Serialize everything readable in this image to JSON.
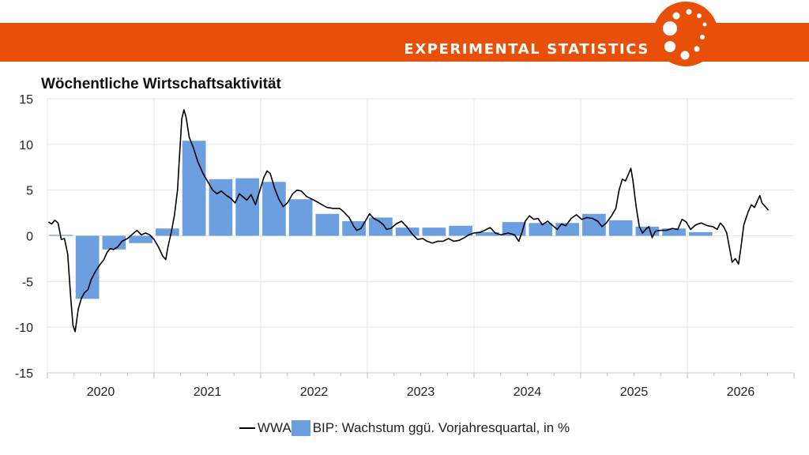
{
  "header": {
    "banner_title": "EXPERIMENTAL STATISTICS",
    "banner_color": "#e8500a",
    "logo_icon": "orange-circle-dots-logo"
  },
  "chart_data": {
    "type": "bar+line",
    "title": "Wöchentliche Wirtschaftsaktivität",
    "xlabel": "",
    "ylabel": "",
    "ylim": [
      -15,
      15
    ],
    "xlim": [
      2019.5,
      2026.5
    ],
    "yticks": [
      "15",
      "10",
      "5",
      "0",
      "-5",
      "-10",
      "-15"
    ],
    "xticks": [
      "2020",
      "2021",
      "2022",
      "2023",
      "2024",
      "2025",
      "2026"
    ],
    "grid": true,
    "legend_position": "bottom",
    "legend": [
      "WWA",
      "BIP: Wachstum ggü. Vorjahresquartal, in %"
    ],
    "bar_color": "#6c9fe0",
    "line_color": "#000000",
    "series": [
      {
        "name": "BIP: Wachstum ggü. Vorjahresquartal, in %",
        "kind": "bar",
        "x": [
          "2020Q1",
          "2020Q2",
          "2020Q3",
          "2020Q4",
          "2021Q1",
          "2021Q2",
          "2021Q3",
          "2021Q4",
          "2022Q1",
          "2022Q2",
          "2022Q3",
          "2022Q4",
          "2023Q1",
          "2023Q2",
          "2023Q3",
          "2023Q4",
          "2024Q1",
          "2024Q2",
          "2024Q3",
          "2024Q4",
          "2025Q1",
          "2025Q2",
          "2025Q3",
          "2025Q4",
          "2026Q1"
        ],
        "values": [
          0.1,
          -6.9,
          -1.5,
          -0.8,
          0.8,
          10.4,
          6.2,
          6.3,
          5.9,
          4.0,
          2.4,
          1.6,
          2.0,
          0.9,
          0.9,
          1.1,
          0.4,
          1.5,
          1.4,
          1.4,
          2.4,
          1.7,
          1.0,
          0.8,
          0.4
        ]
      },
      {
        "name": "WWA",
        "kind": "line",
        "points": [
          [
            2019.51,
            1.5
          ],
          [
            2019.54,
            1.3
          ],
          [
            2019.57,
            1.7
          ],
          [
            2019.6,
            1.4
          ],
          [
            2019.63,
            -0.4
          ],
          [
            2019.66,
            -0.3
          ],
          [
            2019.69,
            -2.0
          ],
          [
            2019.72,
            -7.0
          ],
          [
            2019.74,
            -9.8
          ],
          [
            2019.76,
            -10.5
          ],
          [
            2019.79,
            -8.0
          ],
          [
            2019.82,
            -6.8
          ],
          [
            2019.85,
            -6.2
          ],
          [
            2019.88,
            -5.9
          ],
          [
            2019.91,
            -4.8
          ],
          [
            2019.95,
            -3.9
          ],
          [
            2019.99,
            -3.2
          ],
          [
            2020.03,
            -2.6
          ],
          [
            2020.06,
            -1.8
          ],
          [
            2020.09,
            -1.4
          ],
          [
            2020.12,
            -1.5
          ],
          [
            2020.16,
            -1.2
          ],
          [
            2020.2,
            -0.6
          ],
          [
            2020.25,
            -0.3
          ],
          [
            2020.3,
            0.2
          ],
          [
            2020.34,
            0.6
          ],
          [
            2020.38,
            0.1
          ],
          [
            2020.42,
            0.3
          ],
          [
            2020.46,
            0.1
          ],
          [
            2020.5,
            -0.4
          ],
          [
            2020.54,
            -1.2
          ],
          [
            2020.58,
            -2.2
          ],
          [
            2020.61,
            -2.6
          ],
          [
            2020.63,
            -1.2
          ],
          [
            2020.66,
            0.3
          ],
          [
            2020.69,
            2.2
          ],
          [
            2020.72,
            5.0
          ],
          [
            2020.74,
            9.0
          ],
          [
            2020.76,
            12.8
          ],
          [
            2020.78,
            13.8
          ],
          [
            2020.8,
            13.0
          ],
          [
            2020.83,
            10.8
          ],
          [
            2020.87,
            9.6
          ],
          [
            2020.91,
            8.1
          ],
          [
            2020.96,
            6.8
          ],
          [
            2021.01,
            5.8
          ],
          [
            2021.05,
            5.0
          ],
          [
            2021.09,
            4.6
          ],
          [
            2021.13,
            4.9
          ],
          [
            2021.18,
            4.4
          ],
          [
            2021.22,
            4.1
          ],
          [
            2021.26,
            3.6
          ],
          [
            2021.3,
            4.6
          ],
          [
            2021.34,
            4.2
          ],
          [
            2021.37,
            3.9
          ],
          [
            2021.41,
            4.5
          ],
          [
            2021.45,
            3.4
          ],
          [
            2021.49,
            4.9
          ],
          [
            2021.53,
            6.4
          ],
          [
            2021.56,
            7.1
          ],
          [
            2021.59,
            6.8
          ],
          [
            2021.63,
            5.2
          ],
          [
            2021.67,
            4.0
          ],
          [
            2021.71,
            3.2
          ],
          [
            2021.75,
            3.6
          ],
          [
            2021.8,
            4.6
          ],
          [
            2021.84,
            5.0
          ],
          [
            2021.88,
            4.9
          ],
          [
            2021.93,
            4.3
          ],
          [
            2022.0,
            3.9
          ],
          [
            2022.06,
            3.5
          ],
          [
            2022.12,
            3.1
          ],
          [
            2022.18,
            3.0
          ],
          [
            2022.24,
            3.0
          ],
          [
            2022.28,
            2.6
          ],
          [
            2022.33,
            2.0
          ],
          [
            2022.37,
            1.1
          ],
          [
            2022.4,
            0.6
          ],
          [
            2022.44,
            0.8
          ],
          [
            2022.48,
            1.6
          ],
          [
            2022.52,
            2.4
          ],
          [
            2022.56,
            1.9
          ],
          [
            2022.61,
            1.6
          ],
          [
            2022.65,
            1.2
          ],
          [
            2022.68,
            0.7
          ],
          [
            2022.72,
            0.8
          ],
          [
            2022.77,
            1.3
          ],
          [
            2022.82,
            1.6
          ],
          [
            2022.87,
            1.0
          ],
          [
            2022.92,
            0.2
          ],
          [
            2022.97,
            -0.4
          ],
          [
            2023.02,
            -0.3
          ],
          [
            2023.06,
            -0.6
          ],
          [
            2023.11,
            -0.8
          ],
          [
            2023.16,
            -0.6
          ],
          [
            2023.21,
            -0.6
          ],
          [
            2023.26,
            -0.3
          ],
          [
            2023.31,
            -0.6
          ],
          [
            2023.36,
            -0.5
          ],
          [
            2023.41,
            -0.2
          ],
          [
            2023.45,
            0.1
          ],
          [
            2023.5,
            0.3
          ],
          [
            2023.56,
            0.4
          ],
          [
            2023.6,
            0.6
          ],
          [
            2023.65,
            0.9
          ],
          [
            2023.7,
            0.3
          ],
          [
            2023.75,
            0.1
          ],
          [
            2023.82,
            0.3
          ],
          [
            2023.88,
            0.1
          ],
          [
            2023.92,
            -0.6
          ],
          [
            2023.95,
            0.4
          ],
          [
            2023.98,
            1.6
          ],
          [
            2024.02,
            2.2
          ],
          [
            2024.06,
            1.8
          ],
          [
            2024.1,
            1.9
          ],
          [
            2024.14,
            1.2
          ],
          [
            2024.19,
            1.6
          ],
          [
            2024.24,
            1.1
          ],
          [
            2024.28,
            0.7
          ],
          [
            2024.32,
            1.3
          ],
          [
            2024.36,
            1.1
          ],
          [
            2024.41,
            1.9
          ],
          [
            2024.46,
            2.3
          ],
          [
            2024.51,
            1.8
          ],
          [
            2024.56,
            2.0
          ],
          [
            2024.61,
            1.9
          ],
          [
            2024.66,
            1.6
          ],
          [
            2024.7,
            1.0
          ],
          [
            2024.74,
            1.4
          ],
          [
            2024.79,
            2.2
          ],
          [
            2024.83,
            3.0
          ],
          [
            2024.86,
            5.0
          ],
          [
            2024.89,
            6.2
          ],
          [
            2024.92,
            6.0
          ],
          [
            2024.95,
            6.8
          ],
          [
            2024.97,
            7.4
          ],
          [
            2024.99,
            6.0
          ],
          [
            2025.02,
            3.2
          ],
          [
            2025.05,
            1.0
          ],
          [
            2025.08,
            0.3
          ],
          [
            2025.11,
            0.7
          ],
          [
            2025.14,
            1.0
          ],
          [
            2025.17,
            -0.2
          ],
          [
            2025.2,
            0.5
          ],
          [
            2025.25,
            0.6
          ],
          [
            2025.3,
            0.6
          ],
          [
            2025.36,
            0.8
          ],
          [
            2025.41,
            0.7
          ],
          [
            2025.45,
            1.8
          ],
          [
            2025.49,
            1.5
          ],
          [
            2025.53,
            0.7
          ],
          [
            2025.58,
            1.2
          ],
          [
            2025.63,
            1.4
          ],
          [
            2025.69,
            1.1
          ],
          [
            2025.74,
            1.0
          ],
          [
            2025.78,
            0.7
          ],
          [
            2025.81,
            1.4
          ],
          [
            2025.84,
            1.0
          ],
          [
            2025.87,
            0.3
          ],
          [
            2025.89,
            -1.0
          ],
          [
            2025.92,
            -2.9
          ],
          [
            2025.95,
            -2.5
          ],
          [
            2025.98,
            -3.1
          ],
          [
            2026.0,
            -1.5
          ],
          [
            2026.03,
            1.2
          ],
          [
            2026.07,
            2.6
          ],
          [
            2026.1,
            3.4
          ],
          [
            2026.13,
            3.1
          ],
          [
            2026.16,
            3.9
          ],
          [
            2026.18,
            4.4
          ],
          [
            2026.2,
            3.6
          ],
          [
            2026.23,
            3.2
          ],
          [
            2026.26,
            2.8
          ]
        ]
      }
    ]
  }
}
